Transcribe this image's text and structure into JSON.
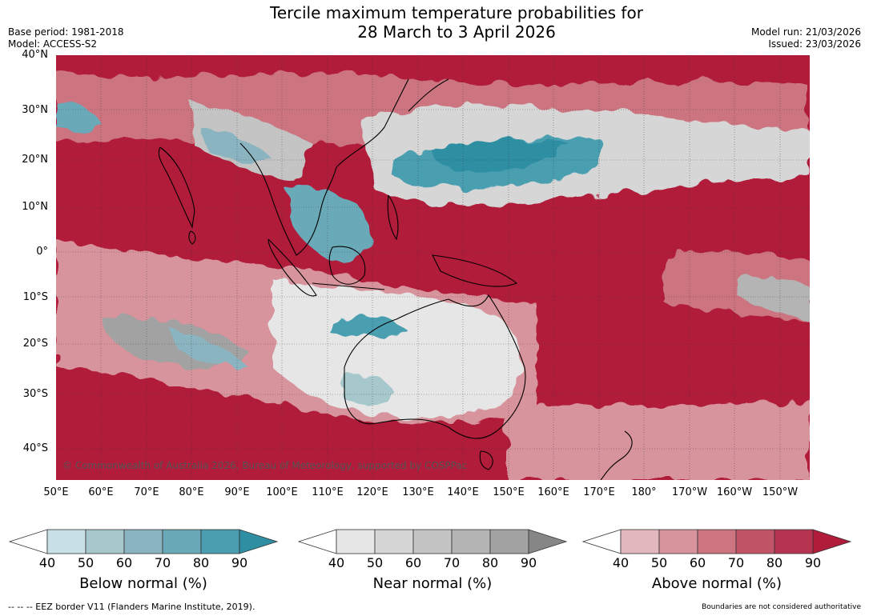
{
  "header": {
    "title_line1": "Tercile maximum temperature probabilities for",
    "title_line2": "28 March to 3 April 2026",
    "base_period": "Base period: 1981-2018",
    "model": "Model: ACCESS-S2",
    "model_run": "Model run: 21/03/2026",
    "issued": "Issued: 23/03/2026"
  },
  "map": {
    "copyright": "© Commonwealth of Australia 2026, Bureau of Meteorology, supported by COSPPac",
    "lat_labels": [
      "40°N",
      "30°N",
      "20°N",
      "10°N",
      "0°",
      "10°S",
      "20°S",
      "30°S",
      "40°S"
    ],
    "lon_labels": [
      "50°E",
      "60°E",
      "70°E",
      "80°E",
      "90°E",
      "100°E",
      "110°E",
      "120°E",
      "130°E",
      "140°E",
      "150°E",
      "160°E",
      "170°E",
      "180°",
      "170°W",
      "160°W",
      "150°W"
    ]
  },
  "legend": {
    "ticks": [
      "40",
      "50",
      "60",
      "70",
      "80",
      "90"
    ],
    "below": {
      "label": "Below normal (%)",
      "colors": [
        "#c8e0e6",
        "#a6c8cc",
        "#8ab4c0",
        "#6aaab8",
        "#4a9eb0",
        "#2e8ea2"
      ]
    },
    "near": {
      "label": "Near normal (%)",
      "colors": [
        "#e6e6e6",
        "#d6d6d6",
        "#c4c4c4",
        "#b4b4b4",
        "#a2a2a2",
        "#868686"
      ]
    },
    "above": {
      "label": "Above normal (%)",
      "colors": [
        "#e2b8be",
        "#d8949c",
        "#cc7480",
        "#c25468",
        "#b63450",
        "#b01c3a"
      ]
    }
  },
  "footer": {
    "eez": "--  --  -- EEZ border V11 (Flanders Marine Institute, 2019).",
    "disclaimer": "Boundaries are not considered authoritative"
  }
}
